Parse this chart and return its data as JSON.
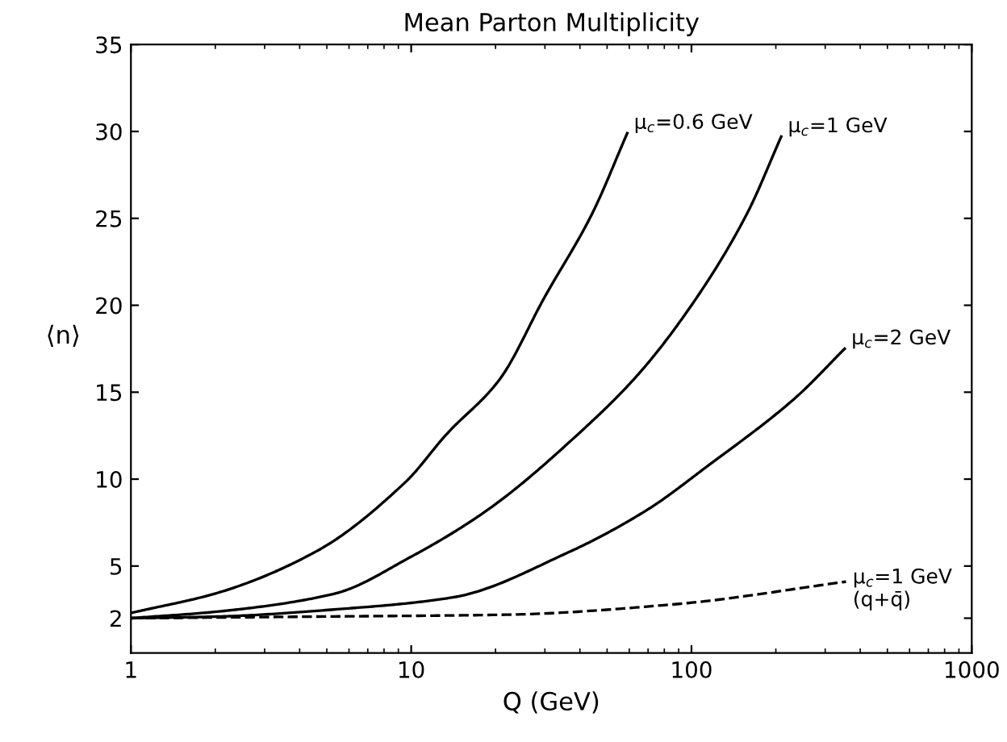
{
  "chart_data": {
    "type": "line",
    "title": "Mean Parton Multiplicity",
    "xlabel": "Q (GeV)",
    "ylabel": "⟨n⟩",
    "log": "x",
    "xlim": [
      1,
      1000
    ],
    "xticks": [
      1,
      10,
      100,
      1000
    ],
    "ylim": [
      0,
      35
    ],
    "yticks": [
      2,
      5,
      10,
      15,
      20,
      25,
      30,
      35
    ],
    "grid": false,
    "series": [
      {
        "color": "#000000",
        "line_style": "solid",
        "x": [
          1,
          2.08,
          4.65,
          9.5,
          13.4,
          20.6,
          30,
          44,
          59
        ],
        "values": [
          2.3,
          3.5,
          5.9,
          9.8,
          12.6,
          15.7,
          20.5,
          25.2,
          29.9
        ]
      },
      {
        "color": "#000000",
        "line_style": "solid",
        "x": [
          1,
          2.1,
          5.3,
          9.9,
          19,
          42,
          66,
          105,
          157,
          209
        ],
        "values": [
          2,
          2.4,
          3.4,
          5.5,
          8.3,
          13,
          16.2,
          20.5,
          25.2,
          29.7
        ]
      },
      {
        "color": "#000000",
        "line_style": "solid",
        "x": [
          1,
          2.1,
          5.3,
          14.1,
          36.5,
          69,
          113,
          232,
          352
        ],
        "values": [
          2,
          2.1,
          2.5,
          3.2,
          5.8,
          8.2,
          10.7,
          14.6,
          17.5
        ]
      },
      {
        "color": "#000000",
        "line_style": "dashed",
        "x": [
          1,
          5.3,
          21.7,
          87,
          356
        ],
        "values": [
          2,
          2.1,
          2.2,
          2.8,
          4.1
        ]
      }
    ],
    "annotations": [
      {
        "text": "μ$_{c}$=0.6 GeV",
        "x": 59,
        "y": 29.9
      },
      {
        "text": "μ$_{c}$=1 GeV",
        "x": 209,
        "y": 29.7
      },
      {
        "text": "μ$_{c}$=2 GeV",
        "x": 352,
        "y": 17.5
      },
      {
        "text": "μ$_{c}$=1 GeV\n(q+q̄)",
        "x": 356,
        "y": 4.1
      }
    ]
  }
}
